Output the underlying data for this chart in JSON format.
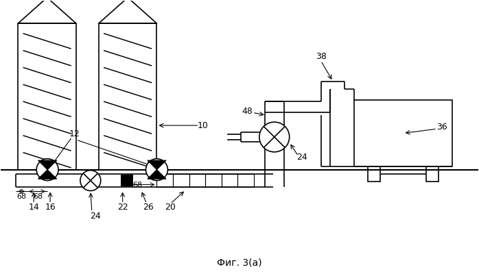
{
  "title": "Фиг. 3(а)",
  "background_color": "#ffffff",
  "line_color": "#000000",
  "lw": 1.2
}
